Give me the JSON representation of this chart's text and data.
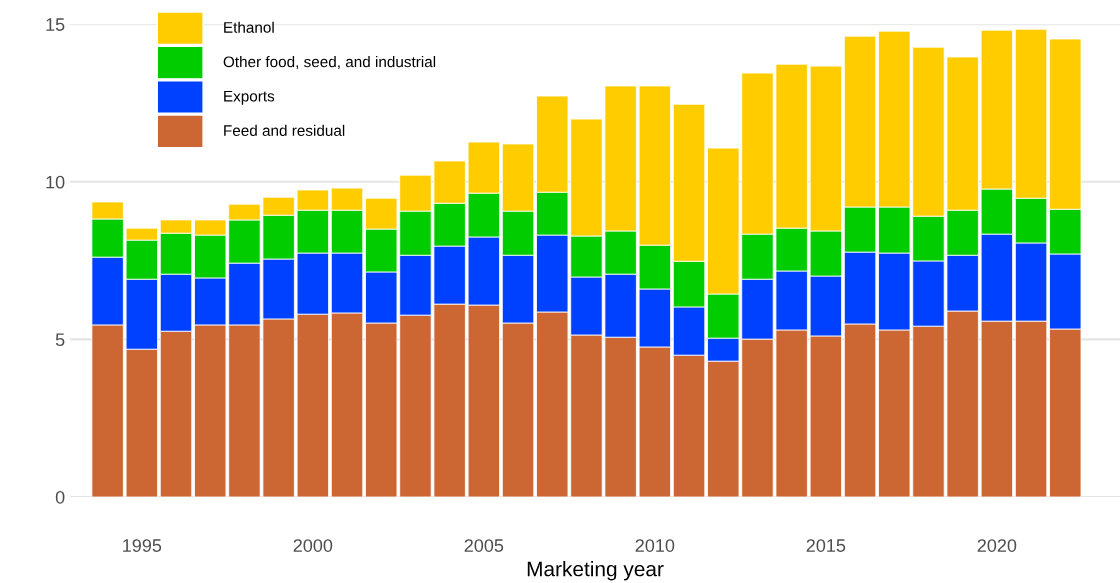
{
  "chart_data": {
    "type": "bar",
    "stacked": true,
    "xlabel": "Marketing year",
    "x": [
      1994,
      1995,
      1996,
      1997,
      1998,
      1999,
      2000,
      2001,
      2002,
      2003,
      2004,
      2005,
      2006,
      2007,
      2008,
      2009,
      2010,
      2011,
      2012,
      2013,
      2014,
      2015,
      2016,
      2017,
      2018,
      2019,
      2020,
      2021,
      2022
    ],
    "series": [
      {
        "name": "Feed and residual",
        "color": "#cc6633",
        "values": [
          5.46,
          4.69,
          5.26,
          5.46,
          5.46,
          5.65,
          5.8,
          5.84,
          5.52,
          5.77,
          6.12,
          6.09,
          5.52,
          5.87,
          5.14,
          5.07,
          4.76,
          4.5,
          4.31,
          5.01,
          5.3,
          5.11,
          5.49,
          5.3,
          5.42,
          5.9,
          5.58,
          5.58,
          5.33
        ]
      },
      {
        "name": "Exports",
        "color": "#0040ff",
        "values": [
          2.15,
          2.22,
          1.81,
          1.49,
          1.96,
          1.9,
          1.94,
          1.9,
          1.62,
          1.9,
          1.84,
          2.16,
          2.15,
          2.44,
          1.84,
          2.0,
          1.84,
          1.53,
          0.73,
          1.9,
          1.87,
          1.9,
          2.28,
          2.44,
          2.07,
          1.77,
          2.76,
          2.48,
          2.38
        ]
      },
      {
        "name": "Other food, seed, and industrial",
        "color": "#00cc00",
        "values": [
          1.21,
          1.24,
          1.3,
          1.36,
          1.37,
          1.39,
          1.36,
          1.36,
          1.36,
          1.4,
          1.36,
          1.39,
          1.4,
          1.36,
          1.3,
          1.37,
          1.39,
          1.45,
          1.4,
          1.43,
          1.36,
          1.43,
          1.43,
          1.46,
          1.42,
          1.43,
          1.43,
          1.42,
          1.42
        ]
      },
      {
        "name": "Ethanol",
        "color": "#ffcc00",
        "values": [
          0.54,
          0.38,
          0.42,
          0.48,
          0.5,
          0.57,
          0.64,
          0.7,
          0.98,
          1.14,
          1.34,
          1.62,
          2.13,
          3.05,
          3.71,
          4.6,
          5.05,
          4.98,
          4.63,
          5.11,
          5.2,
          5.23,
          5.42,
          5.58,
          5.36,
          4.86,
          5.04,
          5.36,
          5.4
        ]
      }
    ],
    "xlim": [
      1992.9,
      2023.6
    ],
    "xticks": [
      1995,
      2000,
      2005,
      2010,
      2015,
      2020
    ],
    "ylim": [
      0,
      15
    ],
    "yticks": [
      0,
      5,
      10,
      15
    ],
    "grid": "y",
    "legend": "top left"
  }
}
